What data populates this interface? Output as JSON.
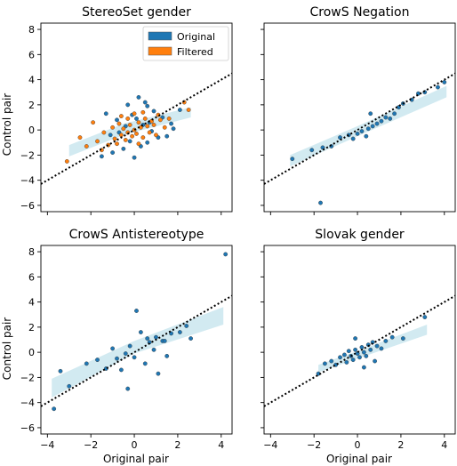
{
  "figure": {
    "ylabel": "Control pair",
    "xlabel": "Original pair",
    "legend": [
      "Original",
      "Filtered"
    ],
    "colors": {
      "original": "#1f77b4",
      "filtered": "#ff7f0e",
      "band": "#add8e6",
      "diagonal": "#000000"
    }
  },
  "chart_data": [
    {
      "type": "scatter",
      "title": "StereoSet gender",
      "xlim": [
        -4.3,
        4.5
      ],
      "ylim": [
        -6.5,
        8.5
      ],
      "xticks": [
        -4,
        -2,
        0,
        2,
        4
      ],
      "yticks": [
        -6,
        -4,
        -2,
        0,
        2,
        4,
        6,
        8
      ],
      "xtick_labels": [
        "−4",
        "−2",
        "0",
        "2",
        "4"
      ],
      "ytick_labels": [
        "−6",
        "−4",
        "−2",
        "0",
        "2",
        "4",
        "6",
        "8"
      ],
      "legend_position": "top-right",
      "diagonal": [
        [
          -4.3,
          -4.3
        ],
        [
          4.5,
          4.5
        ]
      ],
      "band": {
        "upper": [
          [
            -3,
            -1.2
          ],
          [
            -0.5,
            0.5
          ],
          [
            2.6,
            1.8
          ]
        ],
        "lower": [
          [
            -3,
            -2.1
          ],
          [
            -0.5,
            -0.4
          ],
          [
            2.6,
            1.0
          ]
        ]
      },
      "series": [
        {
          "name": "Original",
          "points": [
            [
              0.2,
              2.6
            ],
            [
              0.5,
              2.2
            ],
            [
              -0.3,
              2.0
            ],
            [
              0.9,
              1.5
            ],
            [
              1.3,
              1.0
            ],
            [
              1.7,
              0.5
            ],
            [
              0.7,
              0.6
            ],
            [
              0.4,
              0.4
            ],
            [
              0.8,
              -0.1
            ],
            [
              1.1,
              -0.6
            ],
            [
              0.6,
              -1.0
            ],
            [
              0.3,
              -1.3
            ],
            [
              -0.2,
              -0.9
            ],
            [
              -0.5,
              -1.5
            ],
            [
              -1.0,
              -1.8
            ],
            [
              -1.5,
              -2.1
            ],
            [
              -1.1,
              -0.4
            ],
            [
              -0.7,
              -0.2
            ],
            [
              -0.4,
              0.3
            ],
            [
              -0.1,
              1.2
            ],
            [
              0.1,
              0.9
            ],
            [
              1.5,
              -0.5
            ],
            [
              2.1,
              1.6
            ],
            [
              0.0,
              -2.2
            ],
            [
              -0.8,
              0.8
            ],
            [
              1.8,
              0.1
            ],
            [
              -1.3,
              1.3
            ],
            [
              0.6,
              1.9
            ]
          ]
        },
        {
          "name": "Filtered",
          "points": [
            [
              -3.1,
              -2.5
            ],
            [
              -2.2,
              -1.3
            ],
            [
              -1.9,
              0.6
            ],
            [
              -1.7,
              -0.9
            ],
            [
              -1.4,
              -0.2
            ],
            [
              -1.2,
              -1.2
            ],
            [
              -1.0,
              0.2
            ],
            [
              -0.9,
              -0.7
            ],
            [
              -0.8,
              -1.1
            ],
            [
              -0.7,
              0.5
            ],
            [
              -0.6,
              -0.4
            ],
            [
              -0.5,
              0.1
            ],
            [
              -0.4,
              -0.8
            ],
            [
              -0.3,
              -0.2
            ],
            [
              -0.2,
              0.4
            ],
            [
              -0.1,
              -0.5
            ],
            [
              0.0,
              0.0
            ],
            [
              0.1,
              -0.3
            ],
            [
              0.2,
              0.6
            ],
            [
              0.3,
              0.2
            ],
            [
              0.4,
              -0.6
            ],
            [
              0.5,
              0.9
            ],
            [
              0.6,
              0.3
            ],
            [
              0.7,
              -0.2
            ],
            [
              0.8,
              0.7
            ],
            [
              0.9,
              0.4
            ],
            [
              1.0,
              -0.4
            ],
            [
              1.2,
              0.8
            ],
            [
              1.4,
              0.2
            ],
            [
              1.6,
              0.9
            ],
            [
              2.3,
              2.2
            ],
            [
              2.5,
              1.6
            ],
            [
              -0.6,
              1.1
            ],
            [
              0.0,
              1.3
            ],
            [
              -1.5,
              -1.6
            ],
            [
              0.2,
              -1.1
            ],
            [
              1.1,
              1.2
            ],
            [
              -2.5,
              -0.6
            ],
            [
              -0.3,
              0.9
            ],
            [
              0.4,
              1.4
            ]
          ]
        }
      ]
    },
    {
      "type": "scatter",
      "title": "CrowS Negation",
      "xlim": [
        -4.3,
        4.5
      ],
      "ylim": [
        -6.5,
        8.5
      ],
      "xticks": [
        -4,
        -2,
        0,
        2,
        4
      ],
      "yticks": [
        -6,
        -4,
        -2,
        0,
        2,
        4,
        6,
        8
      ],
      "diagonal": [
        [
          -4.3,
          -4.3
        ],
        [
          4.5,
          4.5
        ]
      ],
      "band": {
        "upper": [
          [
            -3.1,
            -2.0
          ],
          [
            0,
            0.3
          ],
          [
            4.1,
            3.5
          ]
        ],
        "lower": [
          [
            -3.1,
            -2.9
          ],
          [
            0,
            -0.5
          ],
          [
            4.1,
            2.6
          ]
        ]
      },
      "series": [
        {
          "name": "Original",
          "points": [
            [
              -3.0,
              -2.3
            ],
            [
              -2.1,
              -1.6
            ],
            [
              -1.6,
              -1.4
            ],
            [
              -1.2,
              -1.3
            ],
            [
              -0.8,
              -0.6
            ],
            [
              -0.4,
              -0.4
            ],
            [
              -0.2,
              -0.7
            ],
            [
              0.0,
              -0.3
            ],
            [
              0.2,
              -0.1
            ],
            [
              0.4,
              -0.5
            ],
            [
              0.5,
              0.1
            ],
            [
              0.7,
              0.3
            ],
            [
              0.9,
              0.5
            ],
            [
              1.1,
              0.7
            ],
            [
              1.3,
              1.0
            ],
            [
              1.5,
              0.9
            ],
            [
              1.7,
              1.3
            ],
            [
              1.9,
              1.8
            ],
            [
              2.1,
              2.1
            ],
            [
              2.5,
              2.4
            ],
            [
              2.8,
              2.9
            ],
            [
              3.1,
              3.0
            ],
            [
              3.7,
              3.4
            ],
            [
              4.0,
              3.8
            ],
            [
              -1.7,
              -5.8
            ],
            [
              0.6,
              1.3
            ]
          ]
        }
      ]
    },
    {
      "type": "scatter",
      "title": "CrowS Antistereotype",
      "xlim": [
        -4.3,
        4.5
      ],
      "ylim": [
        -6.5,
        8.5
      ],
      "xticks": [
        -4,
        -2,
        0,
        2,
        4
      ],
      "yticks": [
        -6,
        -4,
        -2,
        0,
        2,
        4,
        6,
        8
      ],
      "diagonal": [
        [
          -4.3,
          -4.3
        ],
        [
          4.5,
          4.5
        ]
      ],
      "band": {
        "upper": [
          [
            -3.8,
            -2.1
          ],
          [
            0,
            0.9
          ],
          [
            4.1,
            3.6
          ]
        ],
        "lower": [
          [
            -3.8,
            -3.6
          ],
          [
            0,
            -0.1
          ],
          [
            4.1,
            2.2
          ]
        ]
      },
      "series": [
        {
          "name": "Original",
          "points": [
            [
              -3.7,
              -4.5
            ],
            [
              -3.4,
              -1.5
            ],
            [
              -3.0,
              -2.7
            ],
            [
              -2.2,
              -0.9
            ],
            [
              -1.7,
              -0.6
            ],
            [
              -1.3,
              -1.3
            ],
            [
              -1.0,
              0.3
            ],
            [
              -0.8,
              -0.5
            ],
            [
              -0.6,
              -1.4
            ],
            [
              -0.4,
              -0.1
            ],
            [
              -0.2,
              0.5
            ],
            [
              0.0,
              -0.4
            ],
            [
              0.1,
              3.3
            ],
            [
              0.3,
              1.6
            ],
            [
              0.5,
              -0.9
            ],
            [
              0.7,
              0.8
            ],
            [
              0.9,
              0.2
            ],
            [
              1.0,
              1.2
            ],
            [
              1.1,
              -1.7
            ],
            [
              1.3,
              0.9
            ],
            [
              1.5,
              -0.3
            ],
            [
              1.7,
              1.5
            ],
            [
              2.1,
              1.6
            ],
            [
              2.4,
              2.1
            ],
            [
              2.6,
              1.1
            ],
            [
              4.2,
              7.8
            ],
            [
              -0.3,
              -2.9
            ],
            [
              0.6,
              1.1
            ],
            [
              1.4,
              0.9
            ]
          ]
        }
      ]
    },
    {
      "type": "scatter",
      "title": "Slovak gender",
      "xlim": [
        -4.3,
        4.5
      ],
      "ylim": [
        -6.5,
        8.5
      ],
      "xticks": [
        -4,
        -2,
        0,
        2,
        4
      ],
      "yticks": [
        -6,
        -4,
        -2,
        0,
        2,
        4,
        6,
        8
      ],
      "diagonal": [
        [
          -4.3,
          -4.3
        ],
        [
          4.5,
          4.5
        ]
      ],
      "band": {
        "upper": [
          [
            -1.8,
            -1.0
          ],
          [
            0,
            0.1
          ],
          [
            3.2,
            2.2
          ]
        ],
        "lower": [
          [
            -1.8,
            -1.6
          ],
          [
            0,
            -0.5
          ],
          [
            3.2,
            1.4
          ]
        ]
      },
      "series": [
        {
          "name": "Original",
          "points": [
            [
              -1.8,
              -1.7
            ],
            [
              -1.5,
              -0.9
            ],
            [
              -1.2,
              -0.7
            ],
            [
              -1.0,
              -1.0
            ],
            [
              -0.8,
              -0.4
            ],
            [
              -0.6,
              -0.2
            ],
            [
              -0.5,
              -0.8
            ],
            [
              -0.4,
              0.1
            ],
            [
              -0.3,
              -0.3
            ],
            [
              -0.2,
              -0.6
            ],
            [
              -0.1,
              0.2
            ],
            [
              0.0,
              -0.1
            ],
            [
              0.1,
              -0.4
            ],
            [
              0.2,
              0.4
            ],
            [
              0.3,
              0.0
            ],
            [
              0.4,
              -0.3
            ],
            [
              0.5,
              0.6
            ],
            [
              0.6,
              0.2
            ],
            [
              0.7,
              0.8
            ],
            [
              0.9,
              0.5
            ],
            [
              1.1,
              0.3
            ],
            [
              1.3,
              0.9
            ],
            [
              1.6,
              1.2
            ],
            [
              2.1,
              1.1
            ],
            [
              3.1,
              2.8
            ],
            [
              -0.1,
              1.1
            ],
            [
              0.3,
              -1.2
            ],
            [
              0.8,
              -0.7
            ]
          ]
        }
      ]
    }
  ]
}
